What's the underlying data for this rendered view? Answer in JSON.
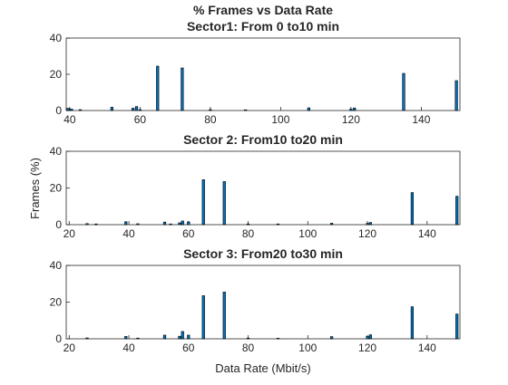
{
  "figure": {
    "title": "% Frames vs Data Rate",
    "ylabel": "Frames (%)",
    "xlabel": "Data Rate (Mbit/s)"
  },
  "colors": {
    "bar": "#0072BD",
    "axis": "#262626"
  },
  "chart_data": [
    {
      "type": "bar",
      "title": "Sector1: From 0 to10 min",
      "xlim": [
        39,
        151
      ],
      "xticks": [
        40,
        60,
        80,
        100,
        120,
        140
      ],
      "ylim": [
        0,
        40
      ],
      "yticks": [
        0,
        20,
        40
      ],
      "points": [
        {
          "x": 39.5,
          "y": 1.2
        },
        {
          "x": 40.5,
          "y": 0.8
        },
        {
          "x": 43,
          "y": 0.5
        },
        {
          "x": 52,
          "y": 1.8
        },
        {
          "x": 58,
          "y": 1.3
        },
        {
          "x": 59,
          "y": 2.2
        },
        {
          "x": 60,
          "y": 0.5
        },
        {
          "x": 65,
          "y": 24.5
        },
        {
          "x": 72,
          "y": 23.5
        },
        {
          "x": 80,
          "y": 0.5
        },
        {
          "x": 90,
          "y": 0.4
        },
        {
          "x": 108,
          "y": 1.5
        },
        {
          "x": 120,
          "y": 0.8
        },
        {
          "x": 121,
          "y": 1.4
        },
        {
          "x": 135,
          "y": 20.5
        },
        {
          "x": 150,
          "y": 16.5
        }
      ]
    },
    {
      "type": "bar",
      "title": "Sector 2: From10 to20 min",
      "xlim": [
        19,
        151
      ],
      "xticks": [
        20,
        40,
        60,
        80,
        100,
        120,
        140
      ],
      "ylim": [
        0,
        40
      ],
      "yticks": [
        0,
        20,
        40
      ],
      "points": [
        {
          "x": 26,
          "y": 0.6
        },
        {
          "x": 29,
          "y": 0.4
        },
        {
          "x": 39,
          "y": 1.6
        },
        {
          "x": 43,
          "y": 0.5
        },
        {
          "x": 52,
          "y": 1.4
        },
        {
          "x": 54,
          "y": 0.4
        },
        {
          "x": 57,
          "y": 1.0
        },
        {
          "x": 58,
          "y": 2.0
        },
        {
          "x": 60,
          "y": 1.5
        },
        {
          "x": 65,
          "y": 24.5
        },
        {
          "x": 72,
          "y": 23.5
        },
        {
          "x": 80,
          "y": 0.4
        },
        {
          "x": 90,
          "y": 0.4
        },
        {
          "x": 108,
          "y": 0.8
        },
        {
          "x": 120,
          "y": 0.7
        },
        {
          "x": 121,
          "y": 1.2
        },
        {
          "x": 135,
          "y": 17.5
        },
        {
          "x": 150,
          "y": 15.5
        }
      ]
    },
    {
      "type": "bar",
      "title": "Sector 3: From20 to30 min",
      "xlim": [
        19,
        151
      ],
      "xticks": [
        20,
        40,
        60,
        80,
        100,
        120,
        140
      ],
      "ylim": [
        0,
        40
      ],
      "yticks": [
        0,
        20,
        40
      ],
      "points": [
        {
          "x": 26,
          "y": 0.5
        },
        {
          "x": 39,
          "y": 1.3
        },
        {
          "x": 43,
          "y": 0.4
        },
        {
          "x": 52,
          "y": 2.0
        },
        {
          "x": 57,
          "y": 1.4
        },
        {
          "x": 58,
          "y": 4.0
        },
        {
          "x": 60,
          "y": 2.0
        },
        {
          "x": 65,
          "y": 23.5
        },
        {
          "x": 72,
          "y": 25.5
        },
        {
          "x": 80,
          "y": 0.4
        },
        {
          "x": 90,
          "y": 0.3
        },
        {
          "x": 108,
          "y": 1.2
        },
        {
          "x": 120,
          "y": 1.4
        },
        {
          "x": 121,
          "y": 2.2
        },
        {
          "x": 135,
          "y": 17.5
        },
        {
          "x": 150,
          "y": 13.5
        }
      ]
    }
  ]
}
